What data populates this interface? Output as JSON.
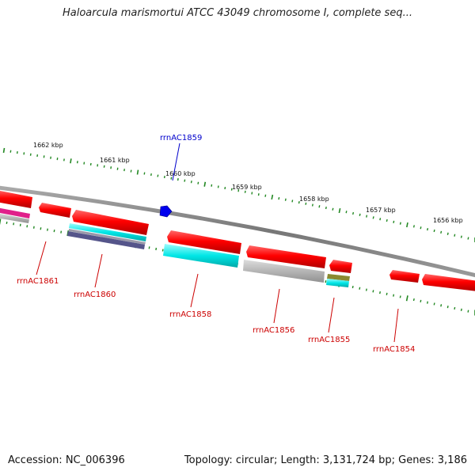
{
  "title": "Haloarcula marismortui ATCC 43049 chromosome I, complete seq...",
  "accession": "Accession: NC_006396",
  "summary": "Topology: circular; Length: 3,131,724 bp; Genes: 3,186",
  "ruler": [
    {
      "label": "1662 kbp"
    },
    {
      "label": "1661 kbp"
    },
    {
      "label": "1660 kbp"
    },
    {
      "label": "1659 kbp"
    },
    {
      "label": "1658 kbp"
    },
    {
      "label": "1657 kbp"
    },
    {
      "label": "1656 kbp"
    }
  ],
  "gene_labels": [
    {
      "text": "rrnAC1859",
      "strand": "forward"
    },
    {
      "text": "rrnAC1861",
      "strand": "reverse"
    },
    {
      "text": "rrnAC1860",
      "strand": "reverse"
    },
    {
      "text": "rrnAC1858",
      "strand": "reverse"
    },
    {
      "text": "rrnAC1856",
      "strand": "reverse"
    },
    {
      "text": "rrnAC1855",
      "strand": "reverse"
    },
    {
      "text": "rrnAC1854",
      "strand": "reverse"
    }
  ],
  "colors": {
    "backbone": "#808080",
    "gene": "#ff0000",
    "forward_gene": "#0000ee",
    "tick": "#228822",
    "cog_cyan": "#00e0e0",
    "cog_gray": "#b0b0b0",
    "cog_magenta": "#e0208a",
    "cog_purple": "#55558a",
    "cog_olive": "#8a8a30",
    "label_forward": "#0000cc",
    "label_reverse": "#cc0000"
  }
}
